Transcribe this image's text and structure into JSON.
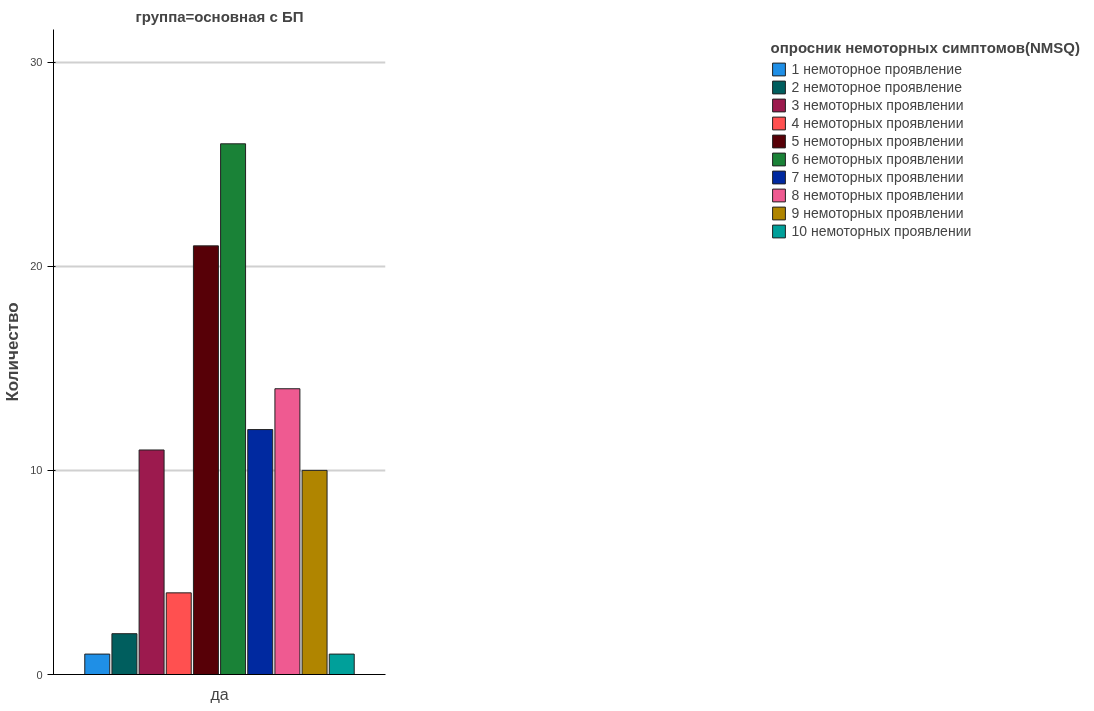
{
  "chart_data": {
    "type": "bar",
    "title": "группа=основная с БП",
    "ylabel": "Количество",
    "legend_title": "опросник немоторных симптомов(NMSQ)",
    "categories": [
      "да"
    ],
    "series": [
      {
        "name": "1 немоторное проявление",
        "color": "#1f8fe6",
        "values": [
          1
        ]
      },
      {
        "name": "2 немоторное проявление",
        "color": "#005e5e",
        "values": [
          2
        ]
      },
      {
        "name": "3 немоторных проявлении",
        "color": "#9c1a4e",
        "values": [
          11
        ]
      },
      {
        "name": "4 немоторных проявлении",
        "color": "#ff5050",
        "values": [
          4
        ]
      },
      {
        "name": "5 немоторных проявлении",
        "color": "#570007",
        "values": [
          21
        ]
      },
      {
        "name": "6 немоторных проявлении",
        "color": "#1a8237",
        "values": [
          26
        ]
      },
      {
        "name": "7 немоторных проявлении",
        "color": "#0029a0",
        "values": [
          12
        ]
      },
      {
        "name": "8 немоторных проявлении",
        "color": "#ef5a91",
        "values": [
          14
        ]
      },
      {
        "name": "9 немоторных проявлении",
        "color": "#b08500",
        "values": [
          10
        ]
      },
      {
        "name": "10 немоторных проявлении",
        "color": "#00a09a",
        "values": [
          1
        ]
      }
    ],
    "ylim": [
      0,
      31.6
    ],
    "yticks": [
      0,
      10,
      20,
      30
    ],
    "grid": "y",
    "legend": "right"
  }
}
